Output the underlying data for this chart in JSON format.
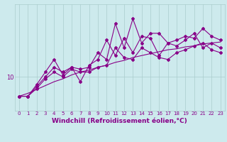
{
  "xlabel": "Windchill (Refroidissement éolien,°C)",
  "background_color": "#cdeaed",
  "line_color": "#880088",
  "grid_color": "#aacccc",
  "x": [
    0,
    1,
    2,
    3,
    4,
    5,
    6,
    7,
    8,
    9,
    10,
    11,
    12,
    13,
    14,
    15,
    16,
    17,
    18,
    19,
    20,
    21,
    22,
    23
  ],
  "y_zigzag": [
    8.0,
    8.0,
    9.2,
    10.5,
    11.8,
    10.2,
    11.0,
    9.5,
    11.2,
    11.8,
    13.8,
    12.2,
    14.0,
    12.5,
    14.2,
    14.0,
    12.2,
    13.5,
    13.2,
    13.8,
    14.5,
    13.0,
    13.5,
    13.0
  ],
  "y_upper": [
    8.0,
    8.0,
    9.0,
    10.0,
    11.0,
    10.5,
    11.0,
    10.8,
    11.0,
    12.5,
    11.8,
    15.5,
    13.0,
    16.0,
    13.5,
    14.5,
    14.5,
    13.5,
    13.8,
    14.2,
    14.0,
    15.0,
    14.2,
    13.8
  ],
  "y_lower": [
    8.0,
    8.0,
    8.8,
    9.8,
    10.5,
    10.0,
    10.8,
    10.5,
    10.5,
    11.0,
    11.2,
    13.0,
    12.0,
    11.8,
    13.0,
    12.5,
    12.0,
    11.8,
    12.5,
    12.8,
    13.2,
    13.5,
    12.8,
    12.5
  ],
  "y_trend": [
    8.0,
    8.3,
    8.7,
    9.1,
    9.5,
    9.8,
    10.2,
    10.5,
    10.7,
    11.0,
    11.2,
    11.5,
    11.7,
    12.0,
    12.2,
    12.4,
    12.6,
    12.8,
    12.9,
    13.1,
    13.2,
    13.4,
    13.5,
    13.6
  ],
  "xlim": [
    -0.5,
    23.5
  ],
  "ylim": [
    6.5,
    17.5
  ],
  "ytick_val": 10,
  "marker": "D",
  "markersize": 2.0,
  "linewidth": 0.8
}
